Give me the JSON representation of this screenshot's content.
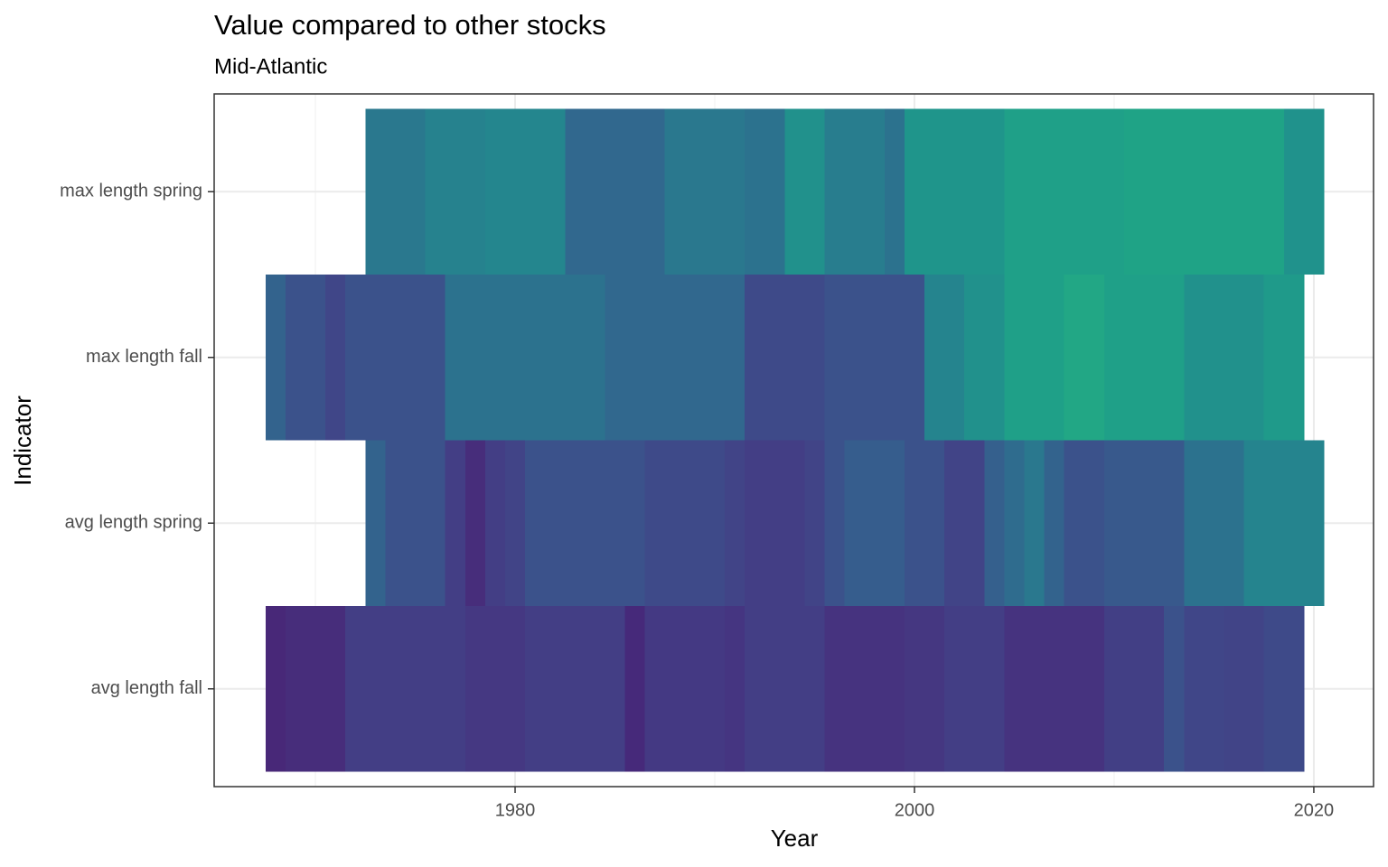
{
  "chart_data": {
    "type": "heatmap",
    "title": "Value compared to other stocks",
    "subtitle": "Mid-Atlantic",
    "x_label": "Year",
    "y_label": "Indicator",
    "xlim": [
      1964.93,
      2022.99
    ],
    "xticks": [
      1980,
      2000,
      2020
    ],
    "x_minor_ticks": [
      1970,
      1990,
      2010
    ],
    "grid": true,
    "series": [
      {
        "name": "avg length fall",
        "x": [
          1968,
          1969,
          1970,
          1971,
          1972,
          1973,
          1974,
          1975,
          1976,
          1977,
          1978,
          1979,
          1980,
          1981,
          1982,
          1983,
          1984,
          1985,
          1986,
          1987,
          1988,
          1989,
          1990,
          1991,
          1992,
          1993,
          1994,
          1995,
          1996,
          1997,
          1998,
          1999,
          2000,
          2001,
          2002,
          2003,
          2004,
          2005,
          2006,
          2007,
          2008,
          2009,
          2010,
          2011,
          2012,
          2013,
          2014,
          2015,
          2016,
          2017,
          2018,
          2019
        ],
        "colors": [
          "#482878",
          "#472d7b",
          "#472d7b",
          "#472d7b",
          "#433e85",
          "#433e85",
          "#433e85",
          "#433e85",
          "#433e85",
          "#433e85",
          "#453882",
          "#453882",
          "#453882",
          "#433e85",
          "#433e85",
          "#433e85",
          "#433e85",
          "#433e85",
          "#46297a",
          "#443983",
          "#443983",
          "#443983",
          "#443983",
          "#453581",
          "#433e85",
          "#433e85",
          "#433e85",
          "#433e85",
          "#46337f",
          "#46337f",
          "#46337f",
          "#46337f",
          "#453781",
          "#453781",
          "#433e85",
          "#433e85",
          "#433e85",
          "#46337f",
          "#46337f",
          "#46337f",
          "#46337f",
          "#46337f",
          "#423f85",
          "#423f85",
          "#423f85",
          "#3b528b",
          "#404688",
          "#404688",
          "#414487",
          "#414487",
          "#3e4a89",
          "#3e4a89"
        ]
      },
      {
        "name": "avg length spring",
        "x": [
          1973,
          1974,
          1975,
          1976,
          1977,
          1978,
          1979,
          1980,
          1981,
          1982,
          1983,
          1984,
          1985,
          1986,
          1987,
          1988,
          1989,
          1990,
          1991,
          1992,
          1993,
          1994,
          1995,
          1996,
          1997,
          1998,
          1999,
          2000,
          2001,
          2002,
          2003,
          2004,
          2005,
          2006,
          2007,
          2008,
          2009,
          2010,
          2011,
          2012,
          2013,
          2014,
          2015,
          2016,
          2017,
          2018,
          2019,
          2020
        ],
        "colors": [
          "#33638d",
          "#3b528b",
          "#3b528b",
          "#3b528b",
          "#433e85",
          "#472d7b",
          "#433e85",
          "#414487",
          "#3b528b",
          "#3b528b",
          "#3b528b",
          "#3b528b",
          "#3b528b",
          "#3b528b",
          "#3e4a89",
          "#3e4a89",
          "#3e4a89",
          "#3e4a89",
          "#414487",
          "#433e85",
          "#433e85",
          "#433e85",
          "#414487",
          "#3b528b",
          "#365d8d",
          "#365d8d",
          "#365d8d",
          "#3b528b",
          "#3b528b",
          "#414487",
          "#414487",
          "#35608d",
          "#2f6c8e",
          "#2a788e",
          "#33638d",
          "#3b528b",
          "#3b528b",
          "#38598c",
          "#38598c",
          "#38598c",
          "#38598c",
          "#2c728e",
          "#2c728e",
          "#2c728e",
          "#25848e",
          "#25848e",
          "#25848e",
          "#25848e"
        ]
      },
      {
        "name": "max length fall",
        "x": [
          1968,
          1969,
          1970,
          1971,
          1972,
          1973,
          1974,
          1975,
          1976,
          1977,
          1978,
          1979,
          1980,
          1981,
          1982,
          1983,
          1984,
          1985,
          1986,
          1987,
          1988,
          1989,
          1990,
          1991,
          1992,
          1993,
          1994,
          1995,
          1996,
          1997,
          1998,
          1999,
          2000,
          2001,
          2002,
          2003,
          2004,
          2005,
          2006,
          2007,
          2008,
          2009,
          2010,
          2011,
          2012,
          2013,
          2014,
          2015,
          2016,
          2017,
          2018,
          2019
        ],
        "colors": [
          "#33638d",
          "#3b528b",
          "#3b528b",
          "#404688",
          "#3b528b",
          "#3b528b",
          "#3b528b",
          "#3b528b",
          "#3b528b",
          "#2c728e",
          "#2c728e",
          "#2c728e",
          "#2c728e",
          "#2c728e",
          "#2c728e",
          "#2c728e",
          "#2c728e",
          "#31688e",
          "#31688e",
          "#31688e",
          "#31688e",
          "#31688e",
          "#31688e",
          "#31688e",
          "#3e4a89",
          "#3e4a89",
          "#3e4a89",
          "#3e4a89",
          "#3b528b",
          "#3b528b",
          "#3b528b",
          "#3b528b",
          "#3b528b",
          "#25848e",
          "#25848e",
          "#21918c",
          "#21918c",
          "#1fa088",
          "#1fa088",
          "#1fa088",
          "#22a785",
          "#22a785",
          "#1fa088",
          "#1fa088",
          "#1fa088",
          "#1fa088",
          "#21918c",
          "#21918c",
          "#21918c",
          "#21918c",
          "#1f9a8a",
          "#1f9a8a"
        ]
      },
      {
        "name": "max length spring",
        "x": [
          1973,
          1974,
          1975,
          1976,
          1977,
          1978,
          1979,
          1980,
          1981,
          1982,
          1983,
          1984,
          1985,
          1986,
          1987,
          1988,
          1989,
          1990,
          1991,
          1992,
          1993,
          1994,
          1995,
          1996,
          1997,
          1998,
          1999,
          2000,
          2001,
          2002,
          2003,
          2004,
          2005,
          2006,
          2007,
          2008,
          2009,
          2010,
          2011,
          2012,
          2013,
          2014,
          2015,
          2016,
          2017,
          2018,
          2019,
          2020
        ],
        "colors": [
          "#2a788e",
          "#2a788e",
          "#2a788e",
          "#26828e",
          "#26828e",
          "#26828e",
          "#24868e",
          "#24868e",
          "#24868e",
          "#24868e",
          "#31688e",
          "#31688e",
          "#31688e",
          "#31688e",
          "#31688e",
          "#2a788e",
          "#2a788e",
          "#2a788e",
          "#2a788e",
          "#2c728e",
          "#2c728e",
          "#21918c",
          "#21918c",
          "#287d8e",
          "#287d8e",
          "#287d8e",
          "#2c728e",
          "#1f958b",
          "#1f958b",
          "#1f958b",
          "#1f958b",
          "#1f958b",
          "#1fa088",
          "#1fa088",
          "#1fa088",
          "#1fa088",
          "#1fa088",
          "#1fa088",
          "#1fa386",
          "#1fa386",
          "#1fa386",
          "#1fa386",
          "#1fa386",
          "#1fa386",
          "#1fa386",
          "#1fa386",
          "#20928c",
          "#20928c"
        ]
      }
    ]
  }
}
